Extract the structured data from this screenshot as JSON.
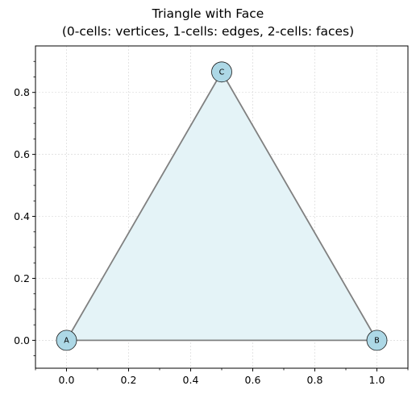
{
  "title": {
    "line1": "Triangle with Face",
    "line2": "(0-cells: vertices, 1-cells: edges, 2-cells: faces)"
  },
  "chart_data": {
    "type": "diagram",
    "xlim": [
      -0.1,
      1.1
    ],
    "ylim": [
      -0.09,
      0.95
    ],
    "x_ticks": [
      {
        "value": 0.0,
        "label": "0.0"
      },
      {
        "value": 0.2,
        "label": "0.2"
      },
      {
        "value": 0.4,
        "label": "0.4"
      },
      {
        "value": 0.6,
        "label": "0.6"
      },
      {
        "value": 0.8,
        "label": "0.8"
      },
      {
        "value": 1.0,
        "label": "1.0"
      }
    ],
    "x_minor_ticks": [
      -0.1,
      0.1,
      0.3,
      0.5,
      0.7,
      0.9,
      1.1
    ],
    "y_ticks": [
      {
        "value": 0.0,
        "label": "0.0"
      },
      {
        "value": 0.2,
        "label": "0.2"
      },
      {
        "value": 0.4,
        "label": "0.4"
      },
      {
        "value": 0.6,
        "label": "0.6"
      },
      {
        "value": 0.8,
        "label": "0.8"
      }
    ],
    "y_minor_ticks": [
      -0.05,
      0.05,
      0.1,
      0.15,
      0.25,
      0.3,
      0.35,
      0.45,
      0.5,
      0.55,
      0.65,
      0.7,
      0.75,
      0.85,
      0.9
    ],
    "grid": true,
    "vertices": [
      {
        "label": "A",
        "x": 0.0,
        "y": 0.0
      },
      {
        "label": "B",
        "x": 1.0,
        "y": 0.0
      },
      {
        "label": "C",
        "x": 0.5,
        "y": 0.866
      }
    ],
    "edges": [
      [
        "A",
        "B"
      ],
      [
        "B",
        "C"
      ],
      [
        "C",
        "A"
      ]
    ],
    "faces": [
      [
        "A",
        "B",
        "C"
      ]
    ],
    "colors": {
      "face_fill": "#e4f3f7",
      "edge": "#808080",
      "vertex_fill": "#add8e6",
      "vertex_stroke": "#1a1a1a",
      "grid": "#d9d9d9"
    }
  }
}
